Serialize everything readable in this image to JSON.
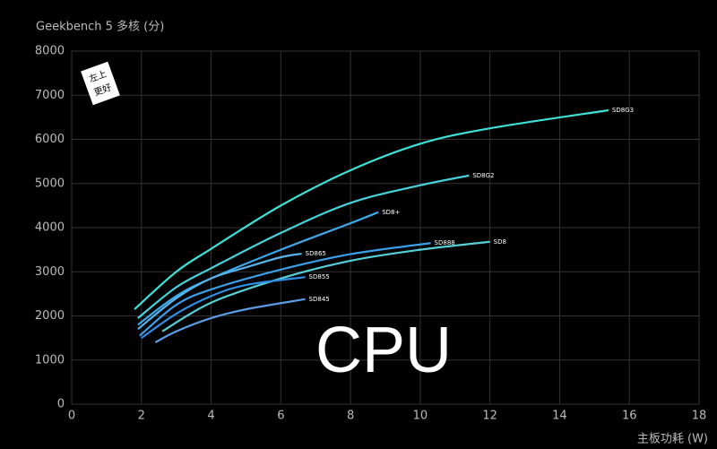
{
  "chart_data": {
    "type": "line",
    "title": "Geekbench 5 多核 (分)",
    "x_label": "主板功耗 (W)",
    "caption": "CPU",
    "annotations": [
      "左上",
      "更好"
    ],
    "xlim": [
      0,
      18
    ],
    "xticks": [
      0,
      2,
      4,
      6,
      8,
      10,
      12,
      14,
      16,
      18
    ],
    "ylim": [
      0,
      8000
    ],
    "yticks": [
      0,
      1000,
      2000,
      3000,
      4000,
      5000,
      6000,
      7000,
      8000
    ],
    "grid": true,
    "series": [
      {
        "name": "SD8G3",
        "color": "#3fe0d6",
        "x": [
          1.8,
          3,
          4,
          6,
          8,
          10,
          12,
          15.4
        ],
        "values": [
          2150,
          3000,
          3520,
          4500,
          5300,
          5900,
          6250,
          6660
        ]
      },
      {
        "name": "SD8G2",
        "color": "#48d2da",
        "x": [
          1.9,
          3,
          4,
          6,
          8,
          10,
          11.4
        ],
        "values": [
          1950,
          2650,
          3080,
          3880,
          4560,
          4960,
          5180
        ]
      },
      {
        "name": "SD8+",
        "color": "#3ea8e8",
        "x": [
          1.9,
          3,
          4,
          6,
          8,
          8.8
        ],
        "values": [
          1800,
          2450,
          2850,
          3500,
          4100,
          4350
        ]
      },
      {
        "name": "SD865",
        "color": "#58b2ea",
        "x": [
          1.9,
          3,
          4,
          5,
          6,
          6.6
        ],
        "values": [
          1700,
          2400,
          2850,
          3100,
          3330,
          3410
        ]
      },
      {
        "name": "SD888",
        "color": "#3a9ee8",
        "x": [
          1.95,
          3,
          4,
          6,
          8,
          10.3
        ],
        "values": [
          1550,
          2250,
          2600,
          3050,
          3400,
          3650
        ]
      },
      {
        "name": "SD8",
        "color": "#56d0d8",
        "x": [
          2.6,
          4,
          6,
          8,
          10,
          12
        ],
        "values": [
          1650,
          2300,
          2850,
          3250,
          3500,
          3680
        ]
      },
      {
        "name": "SD855",
        "color": "#2f8fe6",
        "x": [
          2,
          3,
          4,
          5,
          6.7
        ],
        "values": [
          1500,
          2050,
          2450,
          2700,
          2880
        ]
      },
      {
        "name": "SD845",
        "color": "#5c9ce2",
        "x": [
          2.4,
          3,
          4,
          5,
          6.7
        ],
        "values": [
          1400,
          1650,
          1950,
          2150,
          2380
        ]
      }
    ]
  }
}
